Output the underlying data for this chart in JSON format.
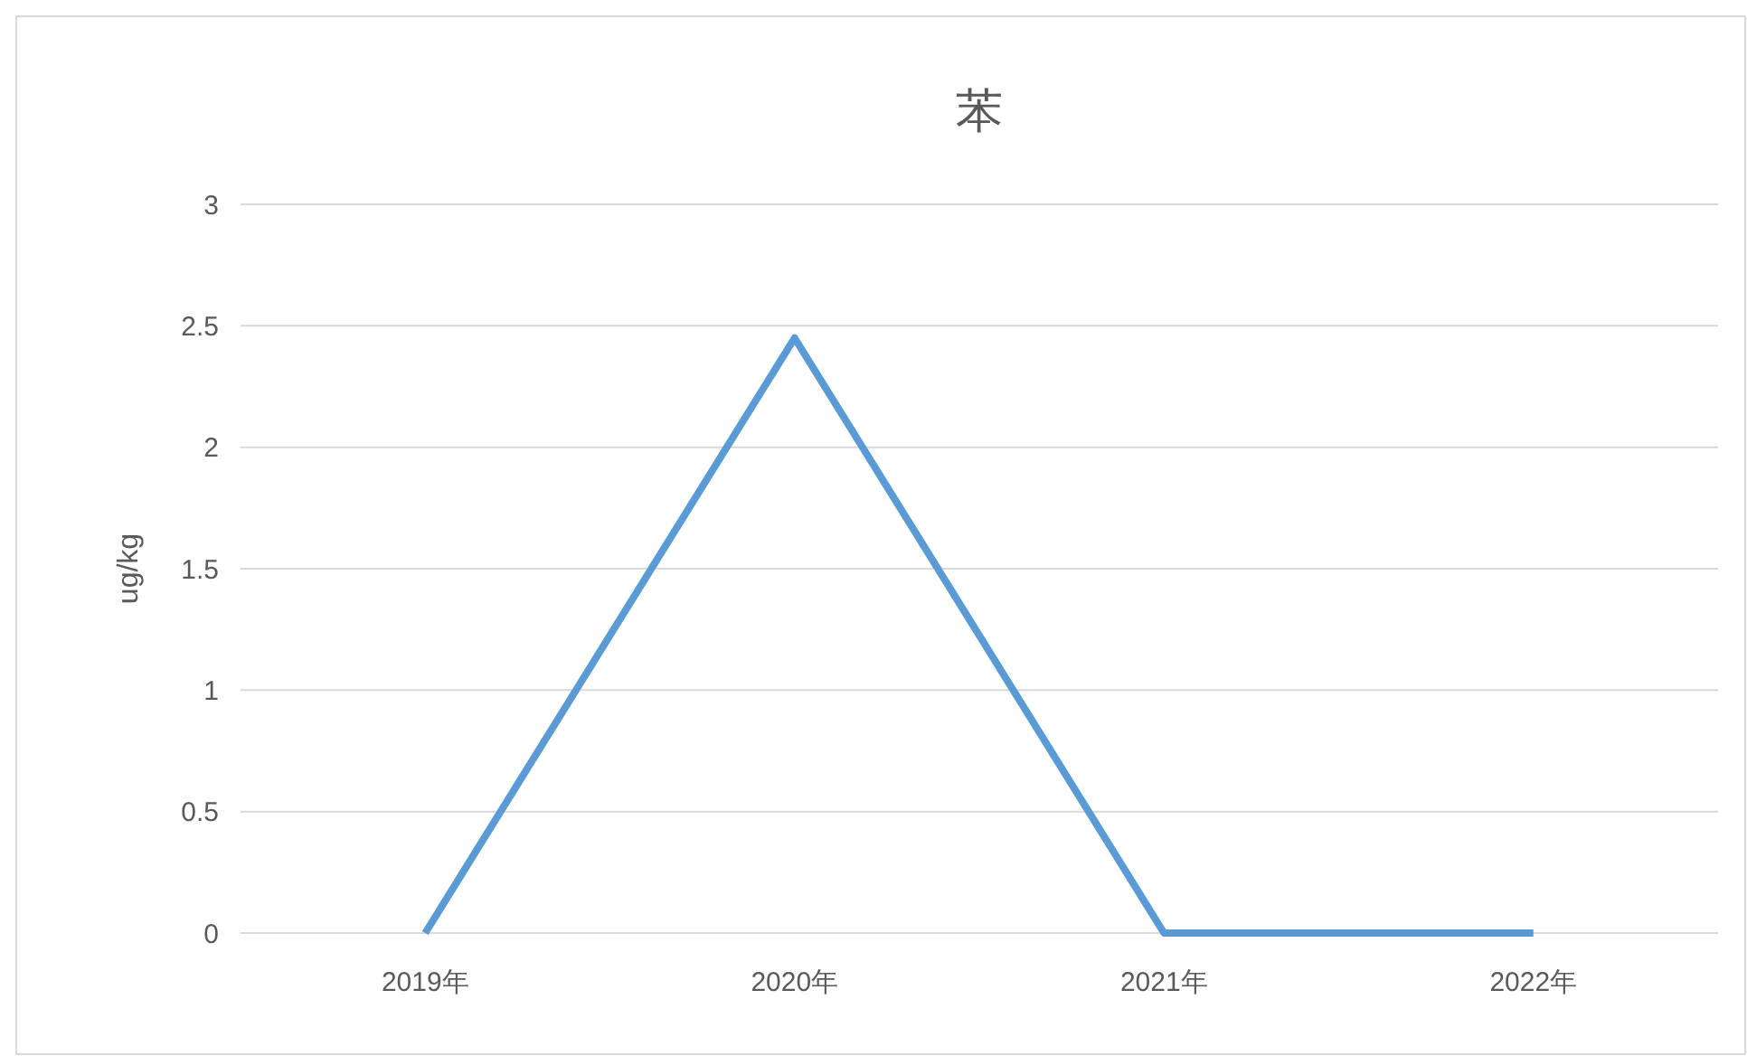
{
  "chart_data": {
    "type": "line",
    "title": "苯",
    "ylabel": "ug/kg",
    "categories": [
      "2019年",
      "2020年",
      "2021年",
      "2022年"
    ],
    "series": [
      {
        "color": "#5b9bd5",
        "values": [
          0,
          2.45,
          0,
          0
        ]
      }
    ],
    "ylim": [
      0,
      3
    ],
    "yticks": [
      0,
      0.5,
      1,
      1.5,
      2,
      2.5,
      3
    ],
    "grid": "y",
    "marker": "none"
  }
}
